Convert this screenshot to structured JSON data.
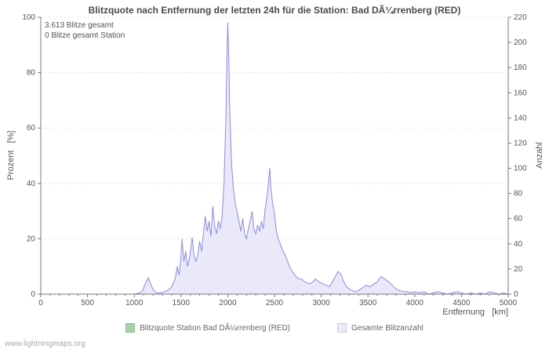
{
  "watermark": "www.lightningmaps.org",
  "chart_data": {
    "type": "area",
    "title": "Blitzquote nach Entfernung der letzten 24h für die Station: Bad DÃ¼rrenberg (RED)",
    "annotations": [
      "3.613 Blitze gesamt",
      "0 Blitze gesamt Station"
    ],
    "x_axis": {
      "label": "Entfernung   [km]",
      "min": 0,
      "max": 5000,
      "major_step": 500,
      "minor_step": 100
    },
    "left_axis": {
      "label": "Prozent   [%]",
      "min": 0,
      "max": 100,
      "major_step": 20
    },
    "right_axis": {
      "label": "Anzahl",
      "min": 0,
      "max": 220,
      "major_step": 20
    },
    "grid": "horizontal-dashed",
    "legend_position": "bottom",
    "series": [
      {
        "name": "Blitzquote Station Bad DÃ¼rrenberg (RED)",
        "axis": "left",
        "type": "line",
        "color": "#a6d3a6",
        "constant_value": 0
      },
      {
        "name": "Gesamte Blitzanzahl",
        "axis": "right",
        "type": "area",
        "fill": "#e9e9fa",
        "stroke": "#8c8cdc",
        "points": [
          [
            0,
            0
          ],
          [
            1000,
            0
          ],
          [
            1060,
            1
          ],
          [
            1090,
            3
          ],
          [
            1120,
            9
          ],
          [
            1150,
            13
          ],
          [
            1180,
            7
          ],
          [
            1210,
            3
          ],
          [
            1240,
            1
          ],
          [
            1280,
            1
          ],
          [
            1320,
            2
          ],
          [
            1360,
            3
          ],
          [
            1400,
            6
          ],
          [
            1420,
            9
          ],
          [
            1440,
            13
          ],
          [
            1460,
            22
          ],
          [
            1480,
            15
          ],
          [
            1500,
            30
          ],
          [
            1510,
            44
          ],
          [
            1530,
            26
          ],
          [
            1550,
            34
          ],
          [
            1570,
            22
          ],
          [
            1590,
            28
          ],
          [
            1620,
            45
          ],
          [
            1640,
            30
          ],
          [
            1660,
            26
          ],
          [
            1680,
            32
          ],
          [
            1700,
            42
          ],
          [
            1720,
            34
          ],
          [
            1740,
            48
          ],
          [
            1760,
            62
          ],
          [
            1780,
            50
          ],
          [
            1800,
            58
          ],
          [
            1820,
            46
          ],
          [
            1840,
            70
          ],
          [
            1860,
            54
          ],
          [
            1880,
            48
          ],
          [
            1900,
            58
          ],
          [
            1920,
            52
          ],
          [
            1940,
            62
          ],
          [
            1960,
            88
          ],
          [
            1980,
            140
          ],
          [
            1990,
            185
          ],
          [
            2000,
            216
          ],
          [
            2010,
            192
          ],
          [
            2020,
            150
          ],
          [
            2040,
            104
          ],
          [
            2060,
            84
          ],
          [
            2080,
            72
          ],
          [
            2100,
            66
          ],
          [
            2120,
            58
          ],
          [
            2140,
            50
          ],
          [
            2160,
            60
          ],
          [
            2180,
            48
          ],
          [
            2200,
            44
          ],
          [
            2220,
            52
          ],
          [
            2240,
            58
          ],
          [
            2260,
            66
          ],
          [
            2280,
            52
          ],
          [
            2300,
            48
          ],
          [
            2320,
            55
          ],
          [
            2340,
            50
          ],
          [
            2360,
            58
          ],
          [
            2380,
            52
          ],
          [
            2400,
            68
          ],
          [
            2420,
            78
          ],
          [
            2440,
            92
          ],
          [
            2450,
            100
          ],
          [
            2460,
            86
          ],
          [
            2480,
            72
          ],
          [
            2500,
            64
          ],
          [
            2520,
            50
          ],
          [
            2540,
            44
          ],
          [
            2560,
            40
          ],
          [
            2580,
            36
          ],
          [
            2600,
            33
          ],
          [
            2620,
            30
          ],
          [
            2640,
            26
          ],
          [
            2660,
            22
          ],
          [
            2680,
            19
          ],
          [
            2700,
            17
          ],
          [
            2730,
            14
          ],
          [
            2760,
            12
          ],
          [
            2790,
            12
          ],
          [
            2820,
            10
          ],
          [
            2850,
            9
          ],
          [
            2880,
            8
          ],
          [
            2910,
            10
          ],
          [
            2940,
            12
          ],
          [
            2970,
            10
          ],
          [
            3000,
            9
          ],
          [
            3030,
            8
          ],
          [
            3060,
            7
          ],
          [
            3090,
            6
          ],
          [
            3120,
            10
          ],
          [
            3150,
            14
          ],
          [
            3180,
            18
          ],
          [
            3210,
            16
          ],
          [
            3240,
            10
          ],
          [
            3270,
            6
          ],
          [
            3300,
            4
          ],
          [
            3330,
            3
          ],
          [
            3360,
            2
          ],
          [
            3400,
            3
          ],
          [
            3440,
            5
          ],
          [
            3480,
            7
          ],
          [
            3520,
            6
          ],
          [
            3560,
            8
          ],
          [
            3600,
            10
          ],
          [
            3640,
            14
          ],
          [
            3680,
            12
          ],
          [
            3720,
            10
          ],
          [
            3760,
            7
          ],
          [
            3800,
            4
          ],
          [
            3840,
            3
          ],
          [
            3880,
            2
          ],
          [
            3920,
            2
          ],
          [
            3960,
            1
          ],
          [
            4000,
            2
          ],
          [
            4050,
            1
          ],
          [
            4100,
            2
          ],
          [
            4150,
            0
          ],
          [
            4200,
            1
          ],
          [
            4250,
            2
          ],
          [
            4300,
            1
          ],
          [
            4350,
            0
          ],
          [
            4400,
            1
          ],
          [
            4450,
            2
          ],
          [
            4500,
            1
          ],
          [
            4550,
            0
          ],
          [
            4600,
            1
          ],
          [
            4650,
            0
          ],
          [
            4700,
            1
          ],
          [
            4750,
            0
          ],
          [
            4800,
            2
          ],
          [
            4850,
            1
          ],
          [
            4900,
            0
          ],
          [
            4950,
            1
          ],
          [
            5000,
            0
          ]
        ]
      }
    ]
  }
}
